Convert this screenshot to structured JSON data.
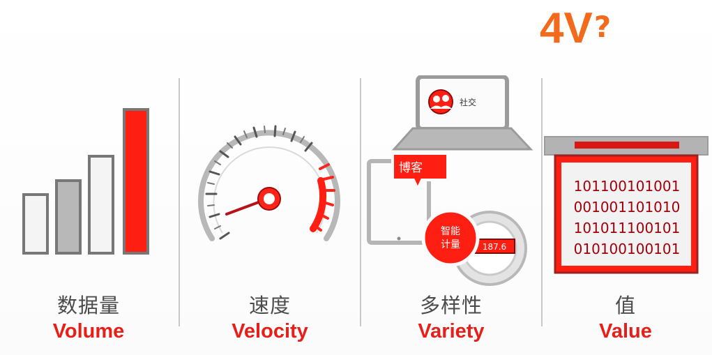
{
  "title": {
    "main": "4V",
    "mark": "?"
  },
  "panels": [
    {
      "cn": "数据量",
      "en": "Volume"
    },
    {
      "cn": "速度",
      "en": "Velocity"
    },
    {
      "cn": "多样性",
      "en": "Variety",
      "icons": {
        "social": "社交",
        "blog": "博客",
        "meter_line1": "智能",
        "meter_line2": "计量",
        "meter_reading": "187.6"
      }
    },
    {
      "cn": "值",
      "en": "Value",
      "binary": [
        "101100101001",
        "001001101010",
        "101011100101",
        "010100100101"
      ]
    }
  ],
  "colors": {
    "title_orange": "#f26a1b",
    "accent_red": "#ff1e12",
    "label_red": "#e71f18",
    "text_gray": "#4b4b4b",
    "divider_gray": "#c8c8c8"
  }
}
